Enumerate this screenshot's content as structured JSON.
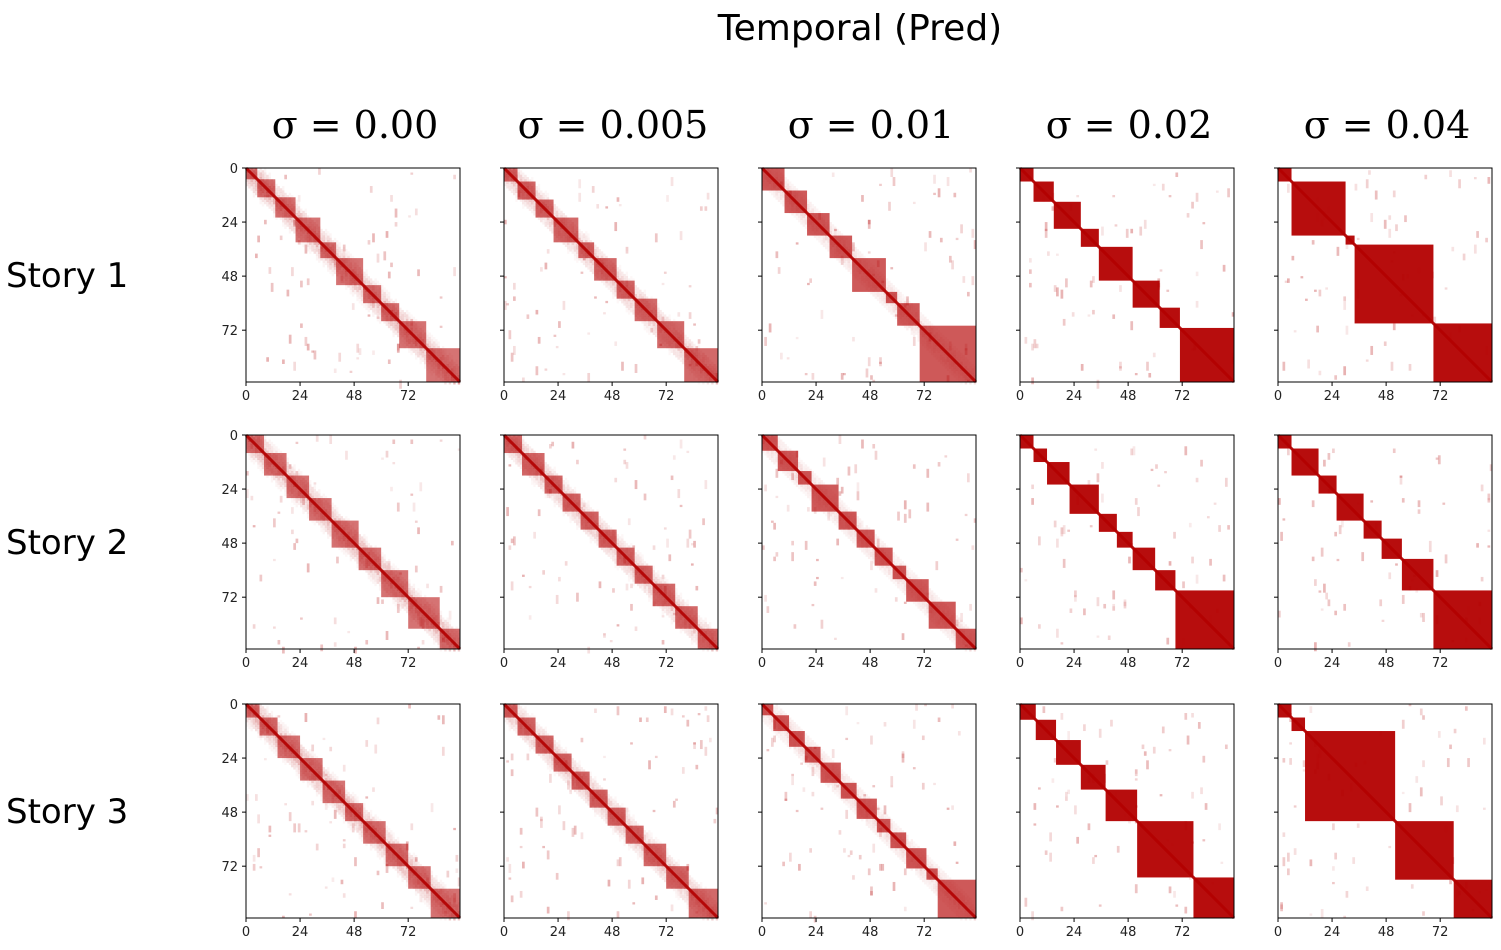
{
  "chart_data": {
    "type": "heatmap",
    "title": "Temporal (Pred)",
    "columns": [
      {
        "label": "σ = 0.00",
        "sigma": 0.0
      },
      {
        "label": "σ = 0.005",
        "sigma": 0.005
      },
      {
        "label": "σ = 0.01",
        "sigma": 0.01
      },
      {
        "label": "σ = 0.02",
        "sigma": 0.02
      },
      {
        "label": "σ = 0.04",
        "sigma": 0.04
      }
    ],
    "rows": [
      {
        "label": "Story 1",
        "blocks": [
          [
            [
              0,
              5
            ],
            [
              5,
              13
            ],
            [
              13,
              22
            ],
            [
              22,
              33
            ],
            [
              33,
              40
            ],
            [
              40,
              52
            ],
            [
              52,
              60
            ],
            [
              60,
              68
            ],
            [
              68,
              80
            ],
            [
              80,
              95
            ]
          ],
          [
            [
              0,
              6
            ],
            [
              6,
              14
            ],
            [
              14,
              22
            ],
            [
              22,
              33
            ],
            [
              33,
              40
            ],
            [
              40,
              50
            ],
            [
              50,
              58
            ],
            [
              58,
              68
            ],
            [
              68,
              80
            ],
            [
              80,
              95
            ]
          ],
          [
            [
              0,
              10
            ],
            [
              10,
              20
            ],
            [
              20,
              30
            ],
            [
              30,
              40
            ],
            [
              40,
              55
            ],
            [
              55,
              60
            ],
            [
              60,
              70
            ],
            [
              70,
              95
            ]
          ],
          [
            [
              0,
              6
            ],
            [
              6,
              15
            ],
            [
              15,
              27
            ],
            [
              27,
              35
            ],
            [
              35,
              50
            ],
            [
              50,
              62
            ],
            [
              62,
              71
            ],
            [
              71,
              95
            ]
          ],
          [
            [
              0,
              6
            ],
            [
              6,
              30
            ],
            [
              30,
              34
            ],
            [
              34,
              69
            ],
            [
              69,
              95
            ]
          ]
        ]
      },
      {
        "label": "Story 2",
        "blocks": [
          [
            [
              0,
              8
            ],
            [
              8,
              18
            ],
            [
              18,
              28
            ],
            [
              28,
              38
            ],
            [
              38,
              50
            ],
            [
              50,
              60
            ],
            [
              60,
              72
            ],
            [
              72,
              86
            ],
            [
              86,
              95
            ]
          ],
          [
            [
              0,
              8
            ],
            [
              8,
              18
            ],
            [
              18,
              26
            ],
            [
              26,
              34
            ],
            [
              34,
              42
            ],
            [
              42,
              50
            ],
            [
              50,
              58
            ],
            [
              58,
              66
            ],
            [
              66,
              76
            ],
            [
              76,
              86
            ],
            [
              86,
              95
            ]
          ],
          [
            [
              0,
              7
            ],
            [
              7,
              16
            ],
            [
              16,
              22
            ],
            [
              22,
              34
            ],
            [
              34,
              42
            ],
            [
              42,
              50
            ],
            [
              50,
              58
            ],
            [
              58,
              64
            ],
            [
              64,
              74
            ],
            [
              74,
              86
            ],
            [
              86,
              95
            ]
          ],
          [
            [
              0,
              6
            ],
            [
              6,
              12
            ],
            [
              12,
              22
            ],
            [
              22,
              35
            ],
            [
              35,
              43
            ],
            [
              43,
              50
            ],
            [
              50,
              60
            ],
            [
              60,
              69
            ],
            [
              69,
              95
            ]
          ],
          [
            [
              0,
              6
            ],
            [
              6,
              18
            ],
            [
              18,
              26
            ],
            [
              26,
              38
            ],
            [
              38,
              46
            ],
            [
              46,
              55
            ],
            [
              55,
              69
            ],
            [
              69,
              95
            ]
          ]
        ]
      },
      {
        "label": "Story 3",
        "blocks": [
          [
            [
              0,
              6
            ],
            [
              6,
              14
            ],
            [
              14,
              24
            ],
            [
              24,
              34
            ],
            [
              34,
              44
            ],
            [
              44,
              52
            ],
            [
              52,
              62
            ],
            [
              62,
              72
            ],
            [
              72,
              82
            ],
            [
              82,
              95
            ]
          ],
          [
            [
              0,
              6
            ],
            [
              6,
              14
            ],
            [
              14,
              22
            ],
            [
              22,
              30
            ],
            [
              30,
              38
            ],
            [
              38,
              46
            ],
            [
              46,
              54
            ],
            [
              54,
              62
            ],
            [
              62,
              72
            ],
            [
              72,
              82
            ],
            [
              82,
              95
            ]
          ],
          [
            [
              0,
              5
            ],
            [
              5,
              12
            ],
            [
              12,
              19
            ],
            [
              19,
              26
            ],
            [
              26,
              35
            ],
            [
              35,
              42
            ],
            [
              42,
              51
            ],
            [
              51,
              57
            ],
            [
              57,
              64
            ],
            [
              64,
              73
            ],
            [
              73,
              78
            ],
            [
              78,
              95
            ]
          ],
          [
            [
              0,
              7
            ],
            [
              7,
              16
            ],
            [
              16,
              27
            ],
            [
              27,
              38
            ],
            [
              38,
              52
            ],
            [
              52,
              77
            ],
            [
              77,
              95
            ]
          ],
          [
            [
              0,
              6
            ],
            [
              6,
              12
            ],
            [
              12,
              52
            ],
            [
              52,
              78
            ],
            [
              78,
              95
            ]
          ]
        ]
      }
    ],
    "n": 95,
    "x_ticks": [
      0,
      24,
      48,
      72
    ],
    "y_ticks": [
      0,
      24,
      48,
      72
    ],
    "color": "#b30000",
    "colorscale": "white to dark red",
    "value_range": [
      0,
      1
    ]
  }
}
